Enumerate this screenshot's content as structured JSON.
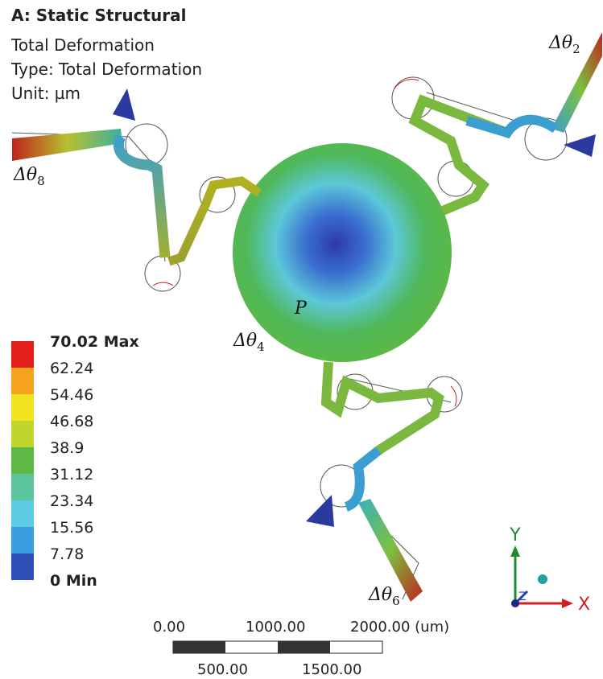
{
  "header": {
    "title": "A: Static Structural",
    "lines": [
      "Total Deformation",
      "Type: Total Deformation",
      "Unit: µm"
    ]
  },
  "legend": [
    {
      "label": "70.02 Max",
      "color": "#e3201c"
    },
    {
      "label": "62.24",
      "color": "#f5a31e"
    },
    {
      "label": "54.46",
      "color": "#f1e31d"
    },
    {
      "label": "46.68",
      "color": "#bfd62f"
    },
    {
      "label": "38.9",
      "color": "#5eb845"
    },
    {
      "label": "31.12",
      "color": "#5cc59e"
    },
    {
      "label": "23.34",
      "color": "#5ccbe3"
    },
    {
      "label": "15.56",
      "color": "#3a9fe0"
    },
    {
      "label": "7.78",
      "color": "#2f4fb6"
    },
    {
      "label": "0 Min"
    }
  ],
  "annotations": {
    "angles": [
      {
        "text": "Δθ",
        "sub": "2"
      },
      {
        "text": "Δθ",
        "sub": "4"
      },
      {
        "text": "Δθ",
        "sub": "6"
      },
      {
        "text": "Δθ",
        "sub": "8"
      }
    ],
    "point": "P"
  },
  "scale_bar": {
    "top": [
      "0.00",
      "1000.00",
      "2000.00 (um)"
    ],
    "bottom": [
      "500.00",
      "1500.00"
    ]
  },
  "triad": {
    "x": "X",
    "y": "Y",
    "z": "Z"
  }
}
